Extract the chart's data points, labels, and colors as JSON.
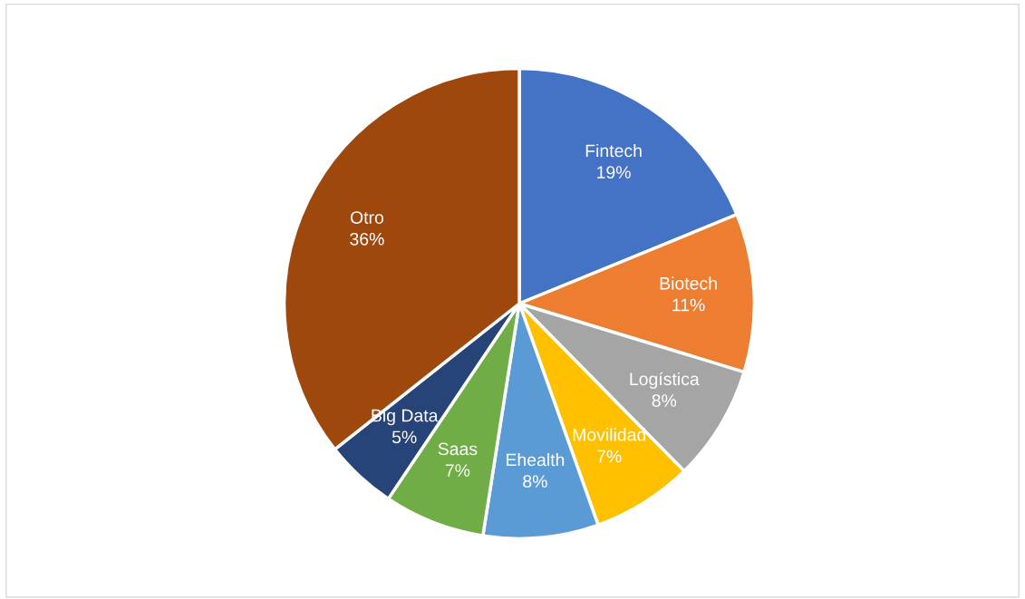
{
  "chart_data": {
    "type": "pie",
    "categories": [
      "Fintech",
      "Biotech",
      "Logística",
      "Movilidad",
      "Ehealth",
      "Saas",
      "Big Data",
      "Otro"
    ],
    "values": [
      19,
      11,
      8,
      7,
      8,
      7,
      5,
      36
    ],
    "value_labels": [
      "19%",
      "11%",
      "8%",
      "7%",
      "8%",
      "7%",
      "5%",
      "36%"
    ],
    "colors": [
      "#4472c4",
      "#ed7d31",
      "#a5a5a5",
      "#ffc000",
      "#5b9bd5",
      "#70ad47",
      "#264478",
      "#9e480e"
    ],
    "legend": false
  }
}
